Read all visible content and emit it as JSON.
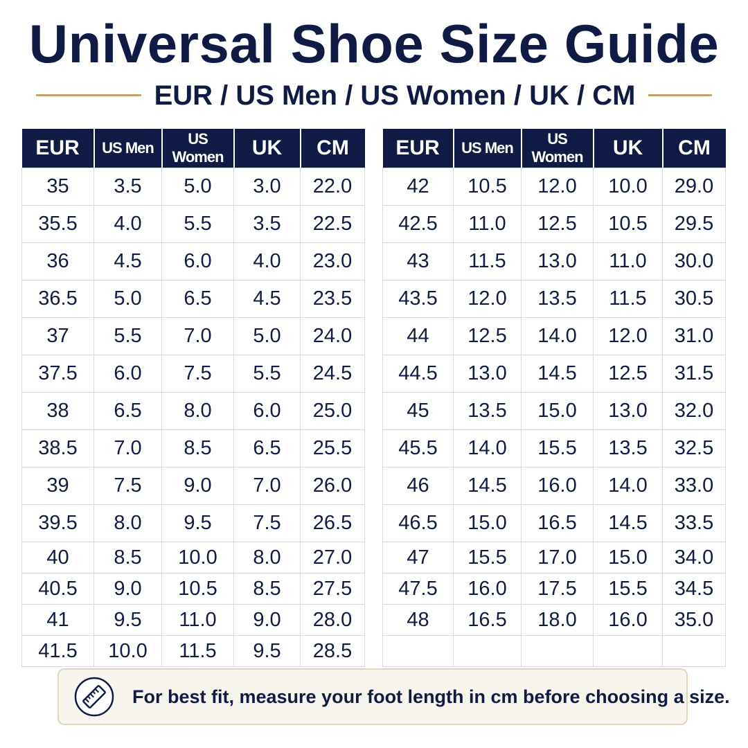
{
  "title": "Universal Shoe Size Guide",
  "subtitle": "EUR / US Men / US Women / UK / CM",
  "colors": {
    "header_bg": "#0f1b45",
    "accent_gold": "#c2a36b",
    "note_bg": "#f8f5ee"
  },
  "headers": [
    "EUR",
    "US Men",
    "US Women",
    "UK",
    "CM"
  ],
  "left_table": [
    [
      "35",
      "3.5",
      "5.0",
      "3.0",
      "22.0"
    ],
    [
      "35.5",
      "4.0",
      "5.5",
      "3.5",
      "22.5"
    ],
    [
      "36",
      "4.5",
      "6.0",
      "4.0",
      "23.0"
    ],
    [
      "36.5",
      "5.0",
      "6.5",
      "4.5",
      "23.5"
    ],
    [
      "37",
      "5.5",
      "7.0",
      "5.0",
      "24.0"
    ],
    [
      "37.5",
      "6.0",
      "7.5",
      "5.5",
      "24.5"
    ],
    [
      "38",
      "6.5",
      "8.0",
      "6.0",
      "25.0"
    ],
    [
      "38.5",
      "7.0",
      "8.5",
      "6.5",
      "25.5"
    ],
    [
      "39",
      "7.5",
      "9.0",
      "7.0",
      "26.0"
    ],
    [
      "39.5",
      "8.0",
      "9.5",
      "7.5",
      "26.5"
    ],
    [
      "40",
      "8.5",
      "10.0",
      "8.0",
      "27.0"
    ],
    [
      "40.5",
      "9.0",
      "10.5",
      "8.5",
      "27.5"
    ],
    [
      "41",
      "9.5",
      "11.0",
      "9.0",
      "28.0"
    ],
    [
      "41.5",
      "10.0",
      "11.5",
      "9.5",
      "28.5"
    ]
  ],
  "right_table": [
    [
      "42",
      "10.5",
      "12.0",
      "10.0",
      "29.0"
    ],
    [
      "42.5",
      "11.0",
      "12.5",
      "10.5",
      "29.5"
    ],
    [
      "43",
      "11.5",
      "13.0",
      "11.0",
      "30.0"
    ],
    [
      "43.5",
      "12.0",
      "13.5",
      "11.5",
      "30.5"
    ],
    [
      "44",
      "12.5",
      "14.0",
      "12.0",
      "31.0"
    ],
    [
      "44.5",
      "13.0",
      "14.5",
      "12.5",
      "31.5"
    ],
    [
      "45",
      "13.5",
      "15.0",
      "13.0",
      "32.0"
    ],
    [
      "45.5",
      "14.0",
      "15.5",
      "13.5",
      "32.5"
    ],
    [
      "46",
      "14.5",
      "16.0",
      "14.0",
      "33.0"
    ],
    [
      "46.5",
      "15.0",
      "16.5",
      "14.5",
      "33.5"
    ],
    [
      "47",
      "15.5",
      "17.0",
      "15.0",
      "34.0"
    ],
    [
      "47.5",
      "16.0",
      "17.5",
      "15.5",
      "34.5"
    ],
    [
      "48",
      "16.5",
      "18.0",
      "16.0",
      "35.0"
    ],
    [
      "",
      "",
      "",
      "",
      ""
    ]
  ],
  "note": {
    "icon": "ruler-icon",
    "text": "For best fit, measure your foot length in cm before choosing a size."
  }
}
